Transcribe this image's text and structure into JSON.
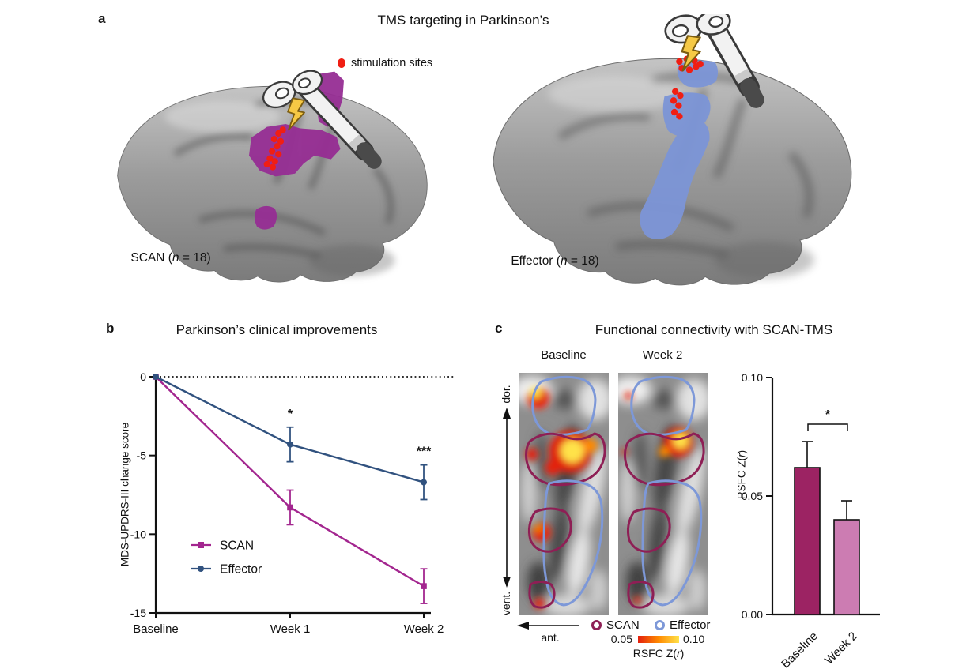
{
  "colors": {
    "scan_line": "#A3268F",
    "effector_line": "#31527F",
    "scan_bar": "#9C2363",
    "week2_bar": "#CC7CB2",
    "scan_outline": "#8E1F55",
    "effector_outline": "#7D98D8",
    "scan_patch": "#962D93",
    "effector_patch": "#7C95D7",
    "stim_dot": "#F01E13",
    "bolt": "#F6C945",
    "coil_body": "#F2F2F2",
    "coil_outline": "#3A3A3A",
    "hot_low": "#E3200E",
    "hot_mid": "#FF8A00",
    "hot_high": "#FFE24A"
  },
  "panel_a": {
    "label": "a",
    "title": "TMS targeting in Parkinson’s",
    "legend_text": "stimulation sites",
    "scan_caption": {
      "pre": "SCAN (",
      "it": "n",
      "post": " = 18)"
    },
    "effector_caption": {
      "pre": "Effector (",
      "it": "n",
      "post": " = 18)"
    }
  },
  "panel_b": {
    "label": "b",
    "title": "Parkinson’s clinical improvements"
  },
  "panel_c": {
    "label": "c",
    "title": "Functional connectivity with SCAN-TMS",
    "map_columns": [
      "Baseline",
      "Week 2"
    ],
    "orientation": {
      "dorsal": "dor.",
      "ventral": "vent.",
      "anterior": "ant."
    },
    "map_legend": [
      {
        "name": "SCAN",
        "color": "#8E1F55"
      },
      {
        "name": "Effector",
        "color": "#7D98D8"
      }
    ],
    "colorbar": {
      "min": "0.05",
      "max": "0.10",
      "label": {
        "pre": "RSFC Z(",
        "it": "r",
        "post": ")"
      }
    },
    "bar_ylabel": {
      "pre": "RSFC Z(",
      "it": "r",
      "post": ")"
    }
  },
  "chart_data": [
    {
      "type": "line",
      "panel": "b",
      "title": "Parkinson’s clinical improvements",
      "categories": [
        "Baseline",
        "Week 1",
        "Week 2"
      ],
      "series": [
        {
          "name": "SCAN",
          "color": "#A3268F",
          "marker": "square",
          "values": [
            0,
            -8.3,
            -13.3
          ],
          "errors": [
            0,
            1.1,
            1.1
          ]
        },
        {
          "name": "Effector",
          "color": "#31527F",
          "marker": "circle",
          "values": [
            0,
            -4.3,
            -6.7
          ],
          "errors": [
            0,
            1.1,
            1.1
          ]
        }
      ],
      "ylabel": "MDS-UPDRS-III change score",
      "ylim": [
        -15,
        0
      ],
      "yticks": [
        0,
        -5,
        -10,
        -15
      ],
      "zero_line": "dotted",
      "grid": false,
      "legend_position": "inside-bottom-left",
      "significance": [
        {
          "category": "Week 1",
          "label": "*"
        },
        {
          "category": "Week 2",
          "label": "***"
        }
      ]
    },
    {
      "type": "bar",
      "panel": "c",
      "categories": [
        "Baseline",
        "Week 2"
      ],
      "values": [
        0.062,
        0.04
      ],
      "errors": [
        0.011,
        0.008
      ],
      "bar_colors": [
        "#9C2363",
        "#CC7CB2"
      ],
      "ylabel": "RSFC Z(r)",
      "ylim": [
        0,
        0.1
      ],
      "yticks": [
        "0.10",
        "0.05",
        "0.00"
      ],
      "grid": false,
      "significance": {
        "label": "*",
        "between": [
          "Baseline",
          "Week 2"
        ]
      }
    }
  ]
}
